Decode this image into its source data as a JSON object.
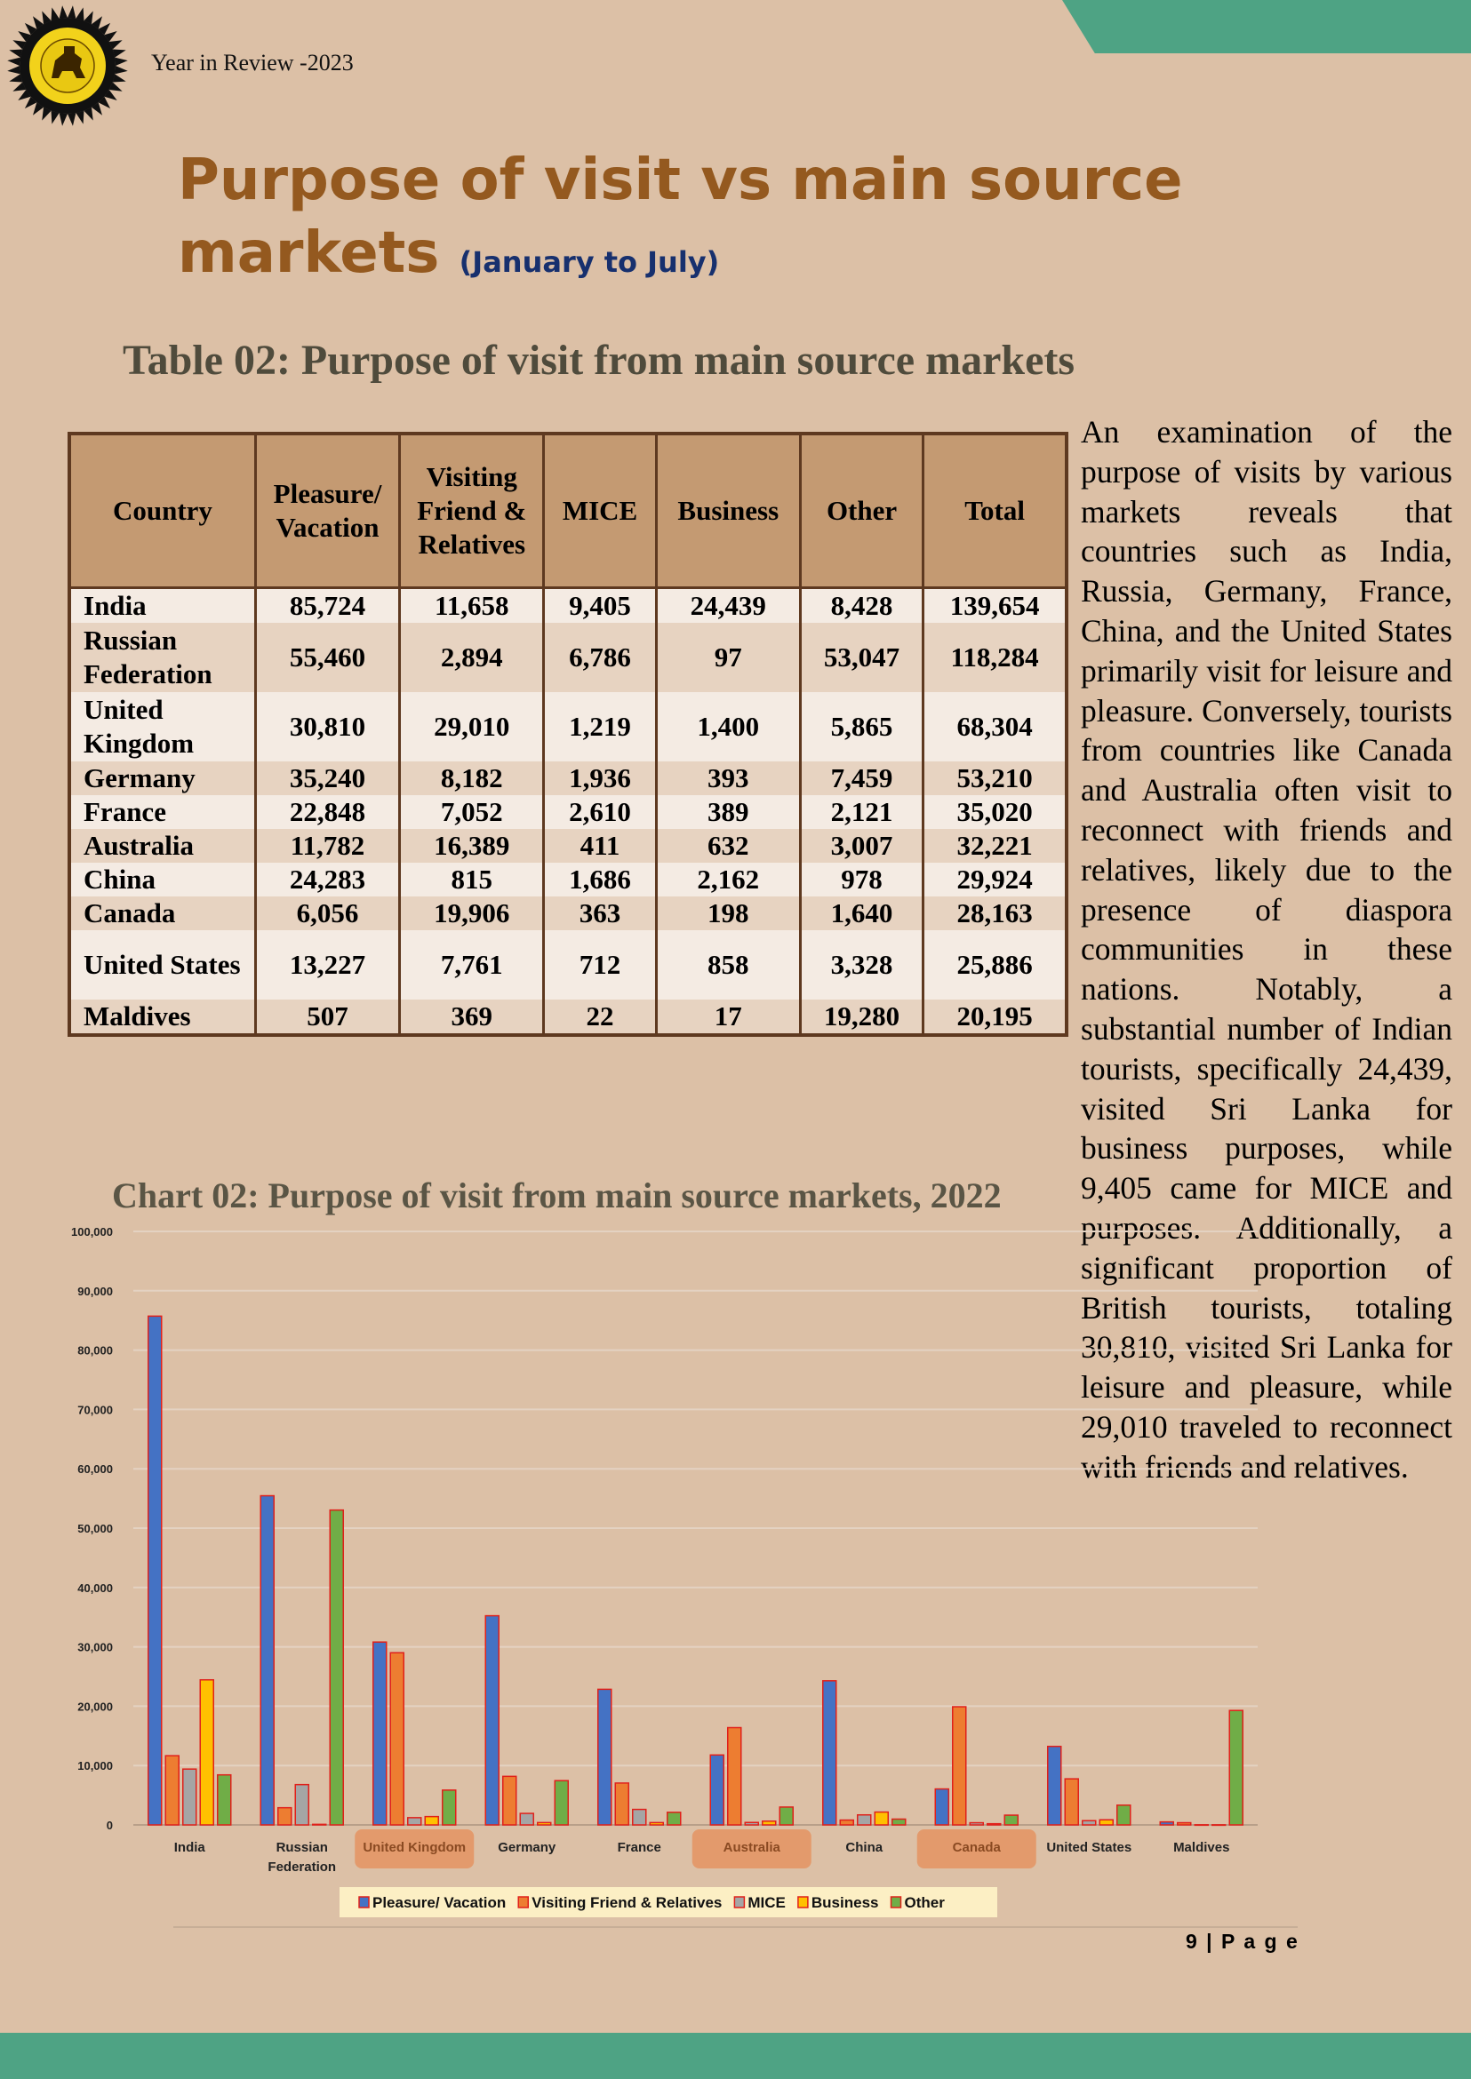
{
  "header": {
    "label": "Year in Review -2023"
  },
  "title": {
    "main": "Purpose of visit vs main source markets",
    "sub": "(January to July)"
  },
  "table": {
    "title": "Table 02: Purpose of visit from main source markets",
    "headers": [
      "Country",
      "Pleasure/ Vacation",
      "Visiting Friend & Relatives",
      "MICE",
      "Business",
      "Other",
      "Total"
    ],
    "rows": [
      [
        "India",
        "85,724",
        "11,658",
        "9,405",
        "24,439",
        "8,428",
        "139,654"
      ],
      [
        "Russian Federation",
        "55,460",
        "2,894",
        "6,786",
        "97",
        "53,047",
        "118,284"
      ],
      [
        "United Kingdom",
        "30,810",
        "29,010",
        "1,219",
        "1,400",
        "5,865",
        "68,304"
      ],
      [
        "Germany",
        "35,240",
        "8,182",
        "1,936",
        "393",
        "7,459",
        "53,210"
      ],
      [
        "France",
        "22,848",
        "7,052",
        "2,610",
        "389",
        "2,121",
        "35,020"
      ],
      [
        "Australia",
        "11,782",
        "16,389",
        "411",
        "632",
        "3,007",
        "32,221"
      ],
      [
        "China",
        "24,283",
        "815",
        "1,686",
        "2,162",
        "978",
        "29,924"
      ],
      [
        "Canada",
        "6,056",
        "19,906",
        "363",
        "198",
        "1,640",
        "28,163"
      ],
      [
        "United States",
        "13,227",
        "7,761",
        "712",
        "858",
        "3,328",
        "25,886"
      ],
      [
        "Maldives",
        "507",
        "369",
        "22",
        "17",
        "19,280",
        "20,195"
      ]
    ]
  },
  "side_text": "An examination of the purpose of visits by various markets reveals that countries such as India, Russia, Germany, France, China, and the United States primarily visit for leisure and pleasure. Conversely, tourists from countries like Canada and Australia often visit to reconnect with friends and relatives, likely due to the presence of diaspora communities in these nations. Notably, a substantial number of Indian tourists, specifically 24,439, visited Sri Lanka for business purposes, while 9,405 came for MICE and purposes. Additionally, a significant proportion of British tourists, totaling 30,810, visited Sri Lanka for leisure and pleasure, while 29,010 traveled to reconnect with friends and relatives.",
  "chart_data": {
    "type": "bar",
    "title": "Chart 02: Purpose of visit from main source markets, 2022",
    "categories": [
      "India",
      "Russian Federation",
      "United Kingdom",
      "Germany",
      "France",
      "Australia",
      "China",
      "Canada",
      "United States",
      "Maldives"
    ],
    "highlighted_categories": [
      "United Kingdom",
      "Australia",
      "Canada"
    ],
    "series": [
      {
        "name": "Pleasure/ Vacation",
        "color": "#4472c4",
        "values": [
          85724,
          55460,
          30810,
          35240,
          22848,
          11782,
          24283,
          6056,
          13227,
          507
        ]
      },
      {
        "name": "Visiting Friend & Relatives",
        "color": "#ed7d31",
        "values": [
          11658,
          2894,
          29010,
          8182,
          7052,
          16389,
          815,
          19906,
          7761,
          369
        ]
      },
      {
        "name": "MICE",
        "color": "#a5a5a5",
        "values": [
          9405,
          6786,
          1219,
          1936,
          2610,
          411,
          1686,
          363,
          712,
          22
        ]
      },
      {
        "name": "Business",
        "color": "#ffc000",
        "values": [
          24439,
          97,
          1400,
          393,
          389,
          632,
          2162,
          198,
          858,
          17
        ]
      },
      {
        "name": "Other",
        "color": "#70ad47",
        "values": [
          8428,
          53047,
          5865,
          7459,
          2121,
          3007,
          978,
          1640,
          3328,
          19280
        ]
      }
    ],
    "ylim": [
      0,
      100000
    ],
    "yticks": [
      "0",
      "10,000",
      "20,000",
      "30,000",
      "40,000",
      "50,000",
      "60,000",
      "70,000",
      "80,000",
      "90,000",
      "100,000"
    ],
    "grid": true,
    "legend": "bottom"
  },
  "footer": {
    "page": "9 | P a g e"
  }
}
